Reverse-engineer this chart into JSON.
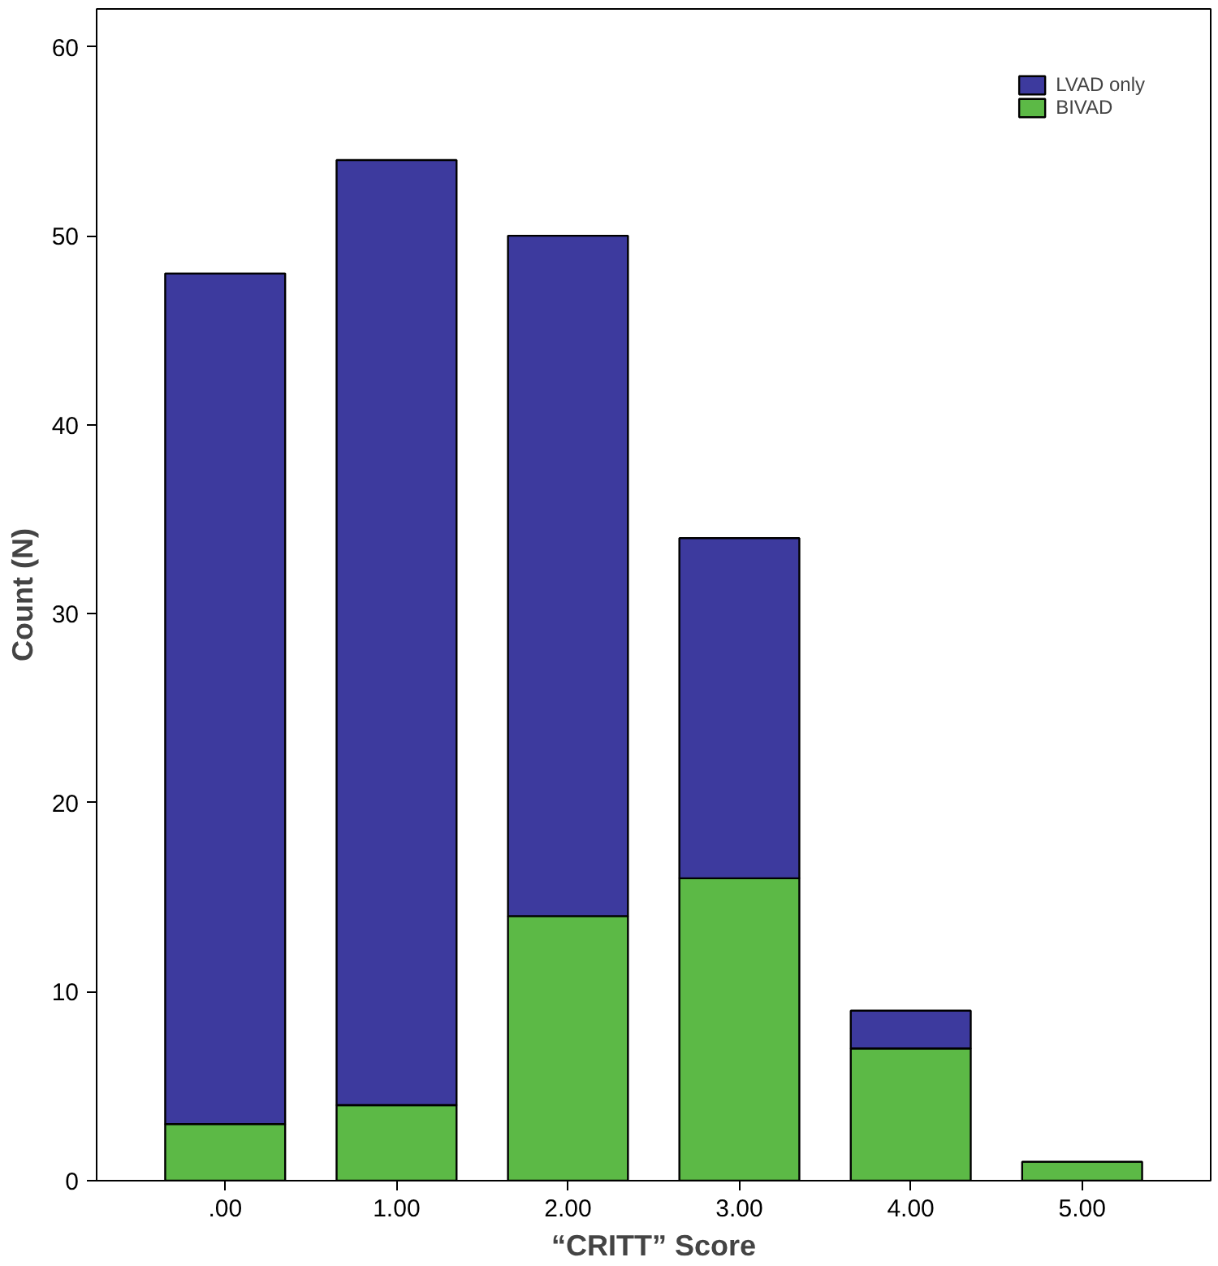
{
  "chart_data": {
    "type": "bar",
    "stacked": true,
    "xlabel": "“CRITT” Score",
    "ylabel": "Count (N)",
    "categories": [
      ".00",
      "1.00",
      "2.00",
      "3.00",
      "4.00",
      "5.00"
    ],
    "series": [
      {
        "name": "BIVAD",
        "color": "#5cb946",
        "values": [
          3,
          4,
          14,
          16,
          7,
          1
        ]
      },
      {
        "name": "LVAD only",
        "color": "#3d3a9e",
        "values": [
          45,
          50,
          36,
          18,
          2,
          0
        ]
      }
    ],
    "ylim": [
      0,
      62
    ],
    "yticks": [
      0,
      10,
      20,
      30,
      40,
      50,
      60
    ],
    "grid": false,
    "legend": "top right"
  }
}
